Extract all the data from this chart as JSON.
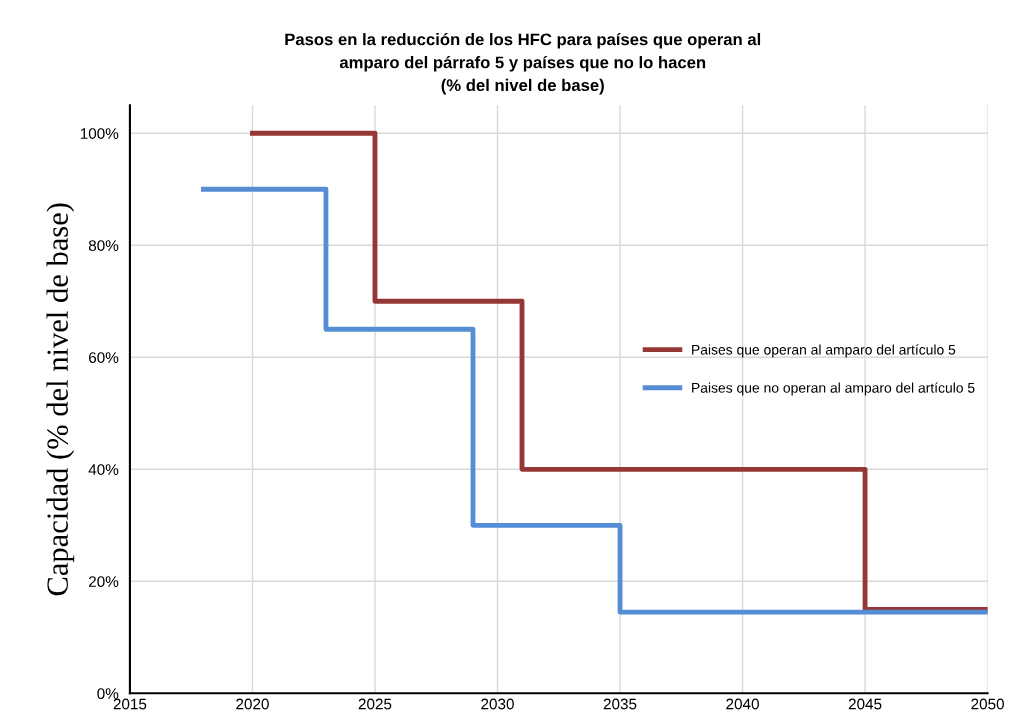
{
  "chart_data": {
    "type": "step",
    "title": "Pasos en la reducción de los HFC para países que operan al\namparo del párrafo 5 y países que no lo hacen\n(% del nivel de base)",
    "ylabel": "Capacidad (% del nivel de base)",
    "series": [
      {
        "name": "Paises que operan al amparo del artículo 5",
        "color": "#953735",
        "x": [
          2020,
          2025,
          2031,
          2045,
          2050
        ],
        "values": [
          100,
          70,
          40,
          15,
          15
        ]
      },
      {
        "name": "Paises que no operan al amparo del artículo 5",
        "color": "#558ed5",
        "x": [
          2018,
          2023,
          2029,
          2035,
          2050
        ],
        "values": [
          90,
          65,
          30,
          14.5,
          14.5
        ]
      }
    ],
    "xlim": [
      2015,
      2050
    ],
    "xticks": [
      2015,
      2020,
      2025,
      2030,
      2035,
      2040,
      2045,
      2050
    ],
    "ylim": [
      0,
      105
    ],
    "yticks": [
      {
        "value": 0,
        "label": "0%"
      },
      {
        "value": 20,
        "label": "20%"
      },
      {
        "value": 40,
        "label": "40%"
      },
      {
        "value": 60,
        "label": "60%"
      },
      {
        "value": 80,
        "label": "80%"
      },
      {
        "value": 100,
        "label": "100%"
      }
    ],
    "grid": true,
    "legend": "center right",
    "marker": "none",
    "line_style": "solid"
  }
}
